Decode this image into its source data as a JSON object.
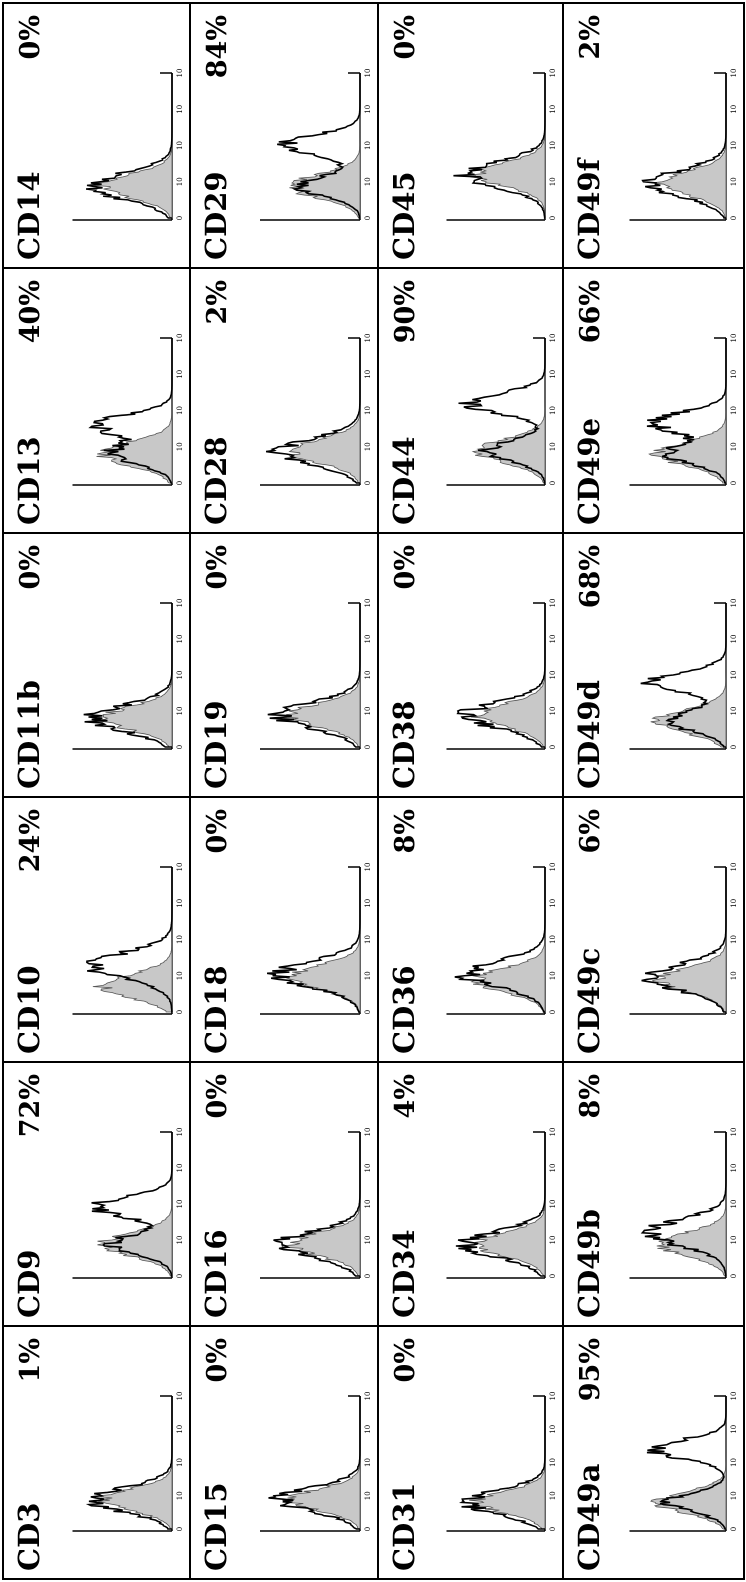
{
  "chart_data": {
    "type": "histogram-grid",
    "orientation": "rotated-90ccw",
    "tick_labels": [
      "0",
      "10",
      "10",
      "10",
      "10"
    ],
    "panels": [
      {
        "marker": "CD3",
        "percent": "1%",
        "control_peak": 0.22,
        "stain_peak": 0.22,
        "bimodal": false
      },
      {
        "marker": "CD9",
        "percent": "72%",
        "control_peak": 0.22,
        "stain_peak": 0.48,
        "bimodal": true
      },
      {
        "marker": "CD10",
        "percent": "24%",
        "control_peak": 0.18,
        "stain_peak": 0.32,
        "bimodal": false
      },
      {
        "marker": "CD11b",
        "percent": "0%",
        "control_peak": 0.2,
        "stain_peak": 0.2,
        "bimodal": false
      },
      {
        "marker": "CD13",
        "percent": "40%",
        "control_peak": 0.2,
        "stain_peak": 0.4,
        "bimodal": true
      },
      {
        "marker": "CD14",
        "percent": "0%",
        "control_peak": 0.22,
        "stain_peak": 0.22,
        "bimodal": false
      },
      {
        "marker": "CD15",
        "percent": "0%",
        "control_peak": 0.22,
        "stain_peak": 0.22,
        "bimodal": false
      },
      {
        "marker": "CD16",
        "percent": "0%",
        "control_peak": 0.22,
        "stain_peak": 0.22,
        "bimodal": false
      },
      {
        "marker": "CD18",
        "percent": "0%",
        "control_peak": 0.24,
        "stain_peak": 0.26,
        "bimodal": false
      },
      {
        "marker": "CD19",
        "percent": "0%",
        "control_peak": 0.22,
        "stain_peak": 0.22,
        "bimodal": false
      },
      {
        "marker": "CD28",
        "percent": "2%",
        "control_peak": 0.22,
        "stain_peak": 0.22,
        "bimodal": false
      },
      {
        "marker": "CD29",
        "percent": "84%",
        "control_peak": 0.22,
        "stain_peak": 0.5,
        "bimodal": true
      },
      {
        "marker": "CD31",
        "percent": "0%",
        "control_peak": 0.2,
        "stain_peak": 0.2,
        "bimodal": false
      },
      {
        "marker": "CD34",
        "percent": "4%",
        "control_peak": 0.22,
        "stain_peak": 0.22,
        "bimodal": false
      },
      {
        "marker": "CD36",
        "percent": "8%",
        "control_peak": 0.22,
        "stain_peak": 0.26,
        "bimodal": false
      },
      {
        "marker": "CD38",
        "percent": "0%",
        "control_peak": 0.22,
        "stain_peak": 0.22,
        "bimodal": false
      },
      {
        "marker": "CD44",
        "percent": "90%",
        "control_peak": 0.22,
        "stain_peak": 0.55,
        "bimodal": true
      },
      {
        "marker": "CD45",
        "percent": "0%",
        "control_peak": 0.3,
        "stain_peak": 0.3,
        "bimodal": false
      },
      {
        "marker": "CD49a",
        "percent": "95%",
        "control_peak": 0.2,
        "stain_peak": 0.6,
        "bimodal": true
      },
      {
        "marker": "CD49b",
        "percent": "8%",
        "control_peak": 0.22,
        "stain_peak": 0.3,
        "bimodal": false
      },
      {
        "marker": "CD49c",
        "percent": "6%",
        "control_peak": 0.22,
        "stain_peak": 0.24,
        "bimodal": false
      },
      {
        "marker": "CD49d",
        "percent": "68%",
        "control_peak": 0.18,
        "stain_peak": 0.45,
        "bimodal": true
      },
      {
        "marker": "CD49e",
        "percent": "66%",
        "control_peak": 0.2,
        "stain_peak": 0.42,
        "bimodal": true
      },
      {
        "marker": "CD49f",
        "percent": "2%",
        "control_peak": 0.24,
        "stain_peak": 0.24,
        "bimodal": false
      }
    ]
  }
}
